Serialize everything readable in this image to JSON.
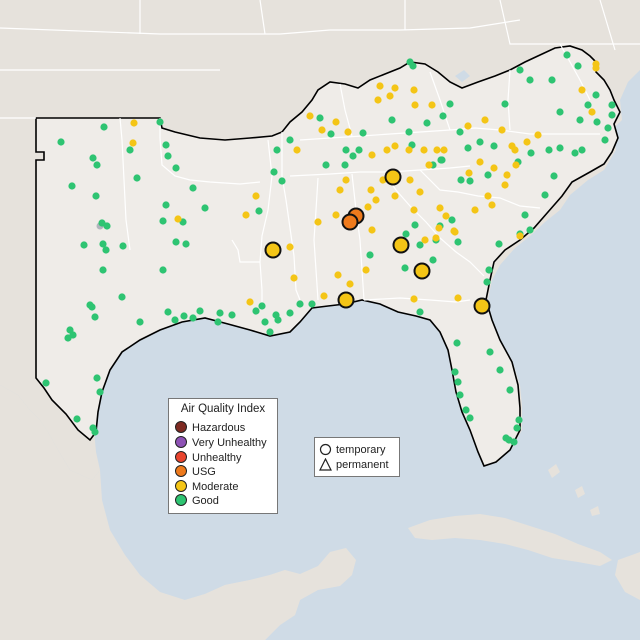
{
  "colors": {
    "water": "#cfdbe6",
    "land": "#ece8e3",
    "land_outside": "#e4e0da",
    "state_border": "#ffffff",
    "region_outline": "#000000",
    "Hazardous": "#7e2a22",
    "Very Unhealthy": "#8e52b5",
    "Unhealthy": "#e8442e",
    "USG": "#ee7a1c",
    "Moderate": "#f4c516",
    "Good": "#2ec472",
    "grey_marker": "#b0b6bd"
  },
  "legend": {
    "title": "Air Quality Index",
    "items": [
      {
        "label": "Hazardous",
        "color": "#7e2a22"
      },
      {
        "label": "Very Unhealthy",
        "color": "#8e52b5"
      },
      {
        "label": "Unhealthy",
        "color": "#e8442e"
      },
      {
        "label": "USG",
        "color": "#ee7a1c"
      },
      {
        "label": "Moderate",
        "color": "#f4c516"
      },
      {
        "label": "Good",
        "color": "#2ec472"
      }
    ]
  },
  "shape_legend": {
    "temporary": "temporary",
    "permanent": "permanent"
  }
}
